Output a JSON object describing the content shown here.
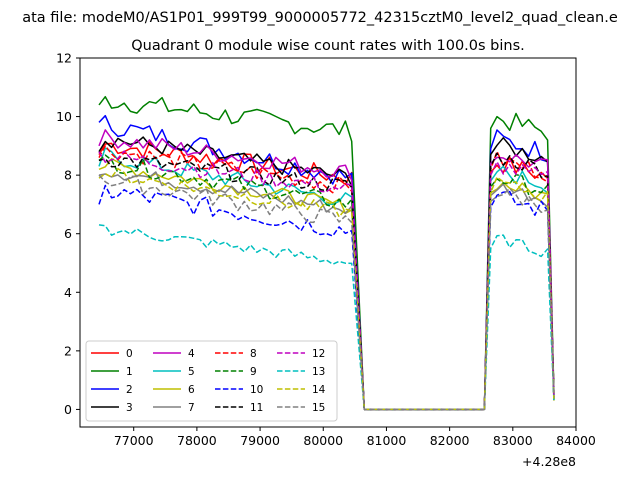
{
  "window": {
    "suptitle": "ata file: modeM0/AS1P01_999T99_9000005772_42315cztM0_level2_quad_clean.e"
  },
  "chart_data": {
    "type": "line",
    "title": "Quadrant 0 module wise count rates with 100.0s bins.",
    "xlabel": "",
    "ylabel": "",
    "x_offset_label": "+4.28e8",
    "xlim": [
      76150,
      84000
    ],
    "ylim": [
      -0.6,
      12.0
    ],
    "xticks": [
      77000,
      78000,
      79000,
      80000,
      81000,
      82000,
      83000,
      84000
    ],
    "xtick_labels": [
      "77000",
      "78000",
      "79000",
      "80000",
      "81000",
      "82000",
      "83000",
      "84000"
    ],
    "yticks": [
      0,
      2,
      4,
      6,
      8,
      10,
      12
    ],
    "ytick_labels": [
      "0",
      "2",
      "4",
      "6",
      "8",
      "10",
      "12"
    ],
    "segments": [
      {
        "x_start": 76450,
        "x_end": 80450,
        "step": 100
      },
      {
        "x_start": 80650,
        "x_end": 82550,
        "step": 100
      },
      {
        "x_start": 82650,
        "x_end": 83650,
        "step": 100
      }
    ],
    "legend": {
      "location": "lower-left",
      "columns": 4
    },
    "series": [
      {
        "name": "0",
        "color": "#ff0000",
        "dash": "solid",
        "level1": 9.1,
        "trend": -1.2,
        "level2": 8.5,
        "noise": 0.35,
        "start": 8.7
      },
      {
        "name": "1",
        "color": "#008000",
        "dash": "solid",
        "level1": 10.6,
        "trend": -1.1,
        "level2": 10.0,
        "noise": 0.35,
        "start": 10.4
      },
      {
        "name": "2",
        "color": "#0000ff",
        "dash": "solid",
        "level1": 9.8,
        "trend": -1.9,
        "level2": 9.3,
        "noise": 0.35,
        "start": 9.8
      },
      {
        "name": "3",
        "color": "#000000",
        "dash": "solid",
        "level1": 9.3,
        "trend": -1.4,
        "level2": 9.1,
        "noise": 0.3,
        "start": 8.8
      },
      {
        "name": "4",
        "color": "#bf00bf",
        "dash": "solid",
        "level1": 9.3,
        "trend": -1.2,
        "level2": 8.8,
        "noise": 0.3,
        "start": 9.0
      },
      {
        "name": "5",
        "color": "#00bfbf",
        "dash": "solid",
        "level1": 8.7,
        "trend": -1.6,
        "level2": 8.2,
        "noise": 0.3,
        "start": 8.3
      },
      {
        "name": "6",
        "color": "#bfbf00",
        "dash": "solid",
        "level1": 8.4,
        "trend": -1.5,
        "level2": 7.8,
        "noise": 0.25,
        "start": 8.2
      },
      {
        "name": "7",
        "color": "#808080",
        "dash": "solid",
        "level1": 8.2,
        "trend": -1.4,
        "level2": 7.7,
        "noise": 0.25,
        "start": 8.0
      },
      {
        "name": "8",
        "color": "#ff0000",
        "dash": "dashed",
        "level1": 8.9,
        "trend": -1.3,
        "level2": 8.6,
        "noise": 0.3,
        "start": 8.6
      },
      {
        "name": "9",
        "color": "#008000",
        "dash": "dashed",
        "level1": 8.5,
        "trend": -1.5,
        "level2": 8.0,
        "noise": 0.3,
        "start": 8.5
      },
      {
        "name": "10",
        "color": "#0000ff",
        "dash": "dashed",
        "level1": 7.5,
        "trend": -1.4,
        "level2": 7.3,
        "noise": 0.35,
        "start": 7.0
      },
      {
        "name": "11",
        "color": "#000000",
        "dash": "dashed",
        "level1": 8.6,
        "trend": -1.0,
        "level2": 8.7,
        "noise": 0.3,
        "start": 8.5
      },
      {
        "name": "12",
        "color": "#bf00bf",
        "dash": "dashed",
        "level1": 8.7,
        "trend": -1.2,
        "level2": 8.4,
        "noise": 0.3,
        "start": 8.8
      },
      {
        "name": "13",
        "color": "#00bfbf",
        "dash": "dashed",
        "level1": 6.2,
        "trend": -1.2,
        "level2": 5.9,
        "noise": 0.2,
        "start": 6.3
      },
      {
        "name": "14",
        "color": "#bfbf00",
        "dash": "dashed",
        "level1": 8.1,
        "trend": -1.4,
        "level2": 7.8,
        "noise": 0.25,
        "start": 7.9
      },
      {
        "name": "15",
        "color": "#808080",
        "dash": "dashed",
        "level1": 7.9,
        "trend": -1.5,
        "level2": 7.5,
        "noise": 0.3,
        "start": 8.0
      }
    ]
  }
}
